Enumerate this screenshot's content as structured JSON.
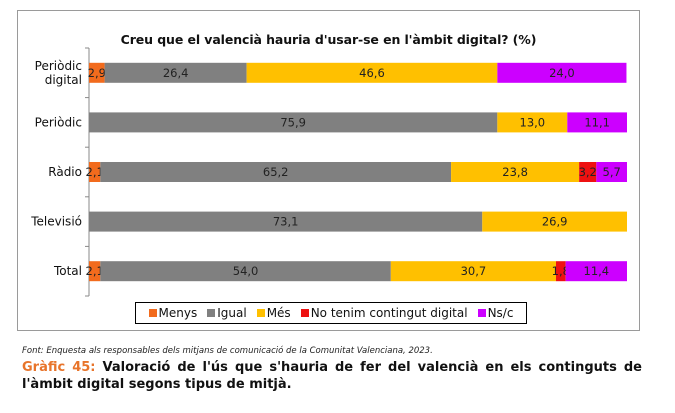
{
  "chart_data": {
    "type": "bar",
    "orientation": "horizontal",
    "stacked": true,
    "title": "Creu que el valencià hauria d'usar-se en l'àmbit digital? (%)",
    "xlabel": "",
    "ylabel": "",
    "xlim": [
      0,
      100
    ],
    "grid": false,
    "legend_position": "bottom",
    "categories": [
      "Periòdic digital",
      "Periòdic",
      "Ràdio",
      "Televisió",
      "Total"
    ],
    "category_lines": [
      [
        "Periòdic",
        "digital"
      ],
      [
        "Periòdic"
      ],
      [
        "Ràdio"
      ],
      [
        "Televisió"
      ],
      [
        "Total"
      ]
    ],
    "series": [
      {
        "name": "Menys",
        "color": "#f26b1d",
        "values": [
          2.9,
          null,
          2.1,
          null,
          2.1
        ],
        "labels": [
          "2,9",
          "",
          "2,1",
          "",
          "2,1"
        ]
      },
      {
        "name": "Igual",
        "color": "#808080",
        "values": [
          26.4,
          75.9,
          65.2,
          73.1,
          54.0
        ],
        "labels": [
          "26,4",
          "75,9",
          "65,2",
          "73,1",
          "54,0"
        ]
      },
      {
        "name": "Més",
        "color": "#ffc000",
        "values": [
          46.6,
          13.0,
          23.8,
          26.9,
          30.7
        ],
        "labels": [
          "46,6",
          "13,0",
          "23,8",
          "26,9",
          "30,7"
        ]
      },
      {
        "name": "No tenim contingut digital",
        "color": "#ee1111",
        "values": [
          null,
          null,
          3.2,
          null,
          1.8
        ],
        "labels": [
          "",
          "",
          "3,2",
          "",
          "1,8"
        ]
      },
      {
        "name": "Ns/c",
        "color": "#cc00ff",
        "values": [
          24.0,
          11.1,
          5.7,
          null,
          11.4
        ],
        "labels": [
          "24,0",
          "11,1",
          "5,7",
          "",
          "11,4"
        ]
      }
    ]
  },
  "source_note": "Font: Enquesta als responsables dels mitjans de comunicació de la Comunitat Valenciana, 2023.",
  "caption": {
    "prefix": "Gràfic 45:",
    "text": " Valoració de l'ús que s'hauria de fer del valencià en els continguts de l'àmbit digital segons tipus de mitjà."
  }
}
